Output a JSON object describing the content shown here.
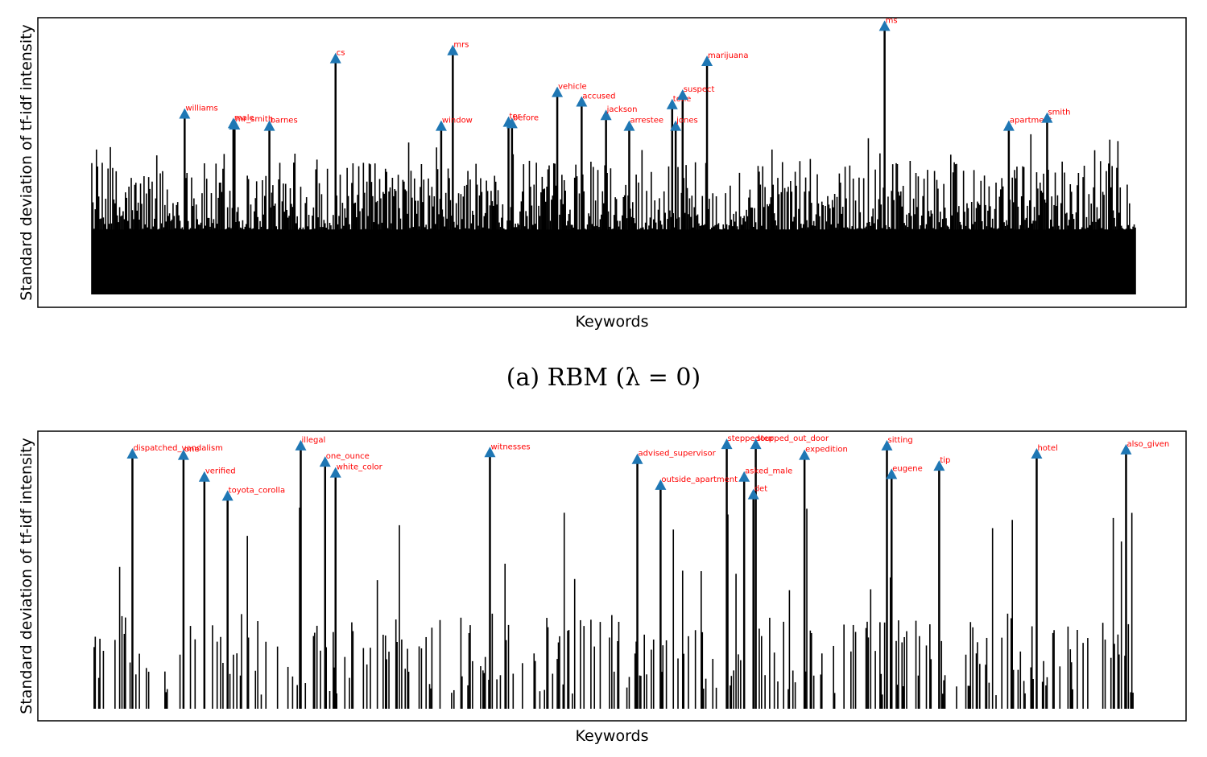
{
  "figure": {
    "caption": "(a) RBM (λ = 0)"
  },
  "chart_data": [
    {
      "type": "bar",
      "subtype": "stem-with-annotated-peaks",
      "xlabel": "Keywords",
      "ylabel": "Standard deviation of tf-idf intensity",
      "xticks": "none",
      "yticks": "none",
      "ylim": [
        0,
        1.0
      ],
      "n_keywords": 900,
      "colors": {
        "bars": "#000000",
        "markers": "#1f77b4",
        "labels": "#ff0000"
      },
      "baseline_level": 0.24,
      "background_peak_range": [
        0.35,
        0.6
      ],
      "annotations": [
        {
          "label": "williams",
          "x": 80,
          "y": 0.665
        },
        {
          "label": "male",
          "x": 122,
          "y": 0.63
        },
        {
          "label": "mr_smith",
          "x": 123,
          "y": 0.625
        },
        {
          "label": "barnes",
          "x": 153,
          "y": 0.62
        },
        {
          "label": "cs",
          "x": 210,
          "y": 0.87
        },
        {
          "label": "window",
          "x": 301,
          "y": 0.62
        },
        {
          "label": "mrs",
          "x": 311,
          "y": 0.9
        },
        {
          "label": "ter",
          "x": 359,
          "y": 0.635
        },
        {
          "label": "before",
          "x": 362,
          "y": 0.63
        },
        {
          "label": "vehicle",
          "x": 401,
          "y": 0.745
        },
        {
          "label": "accused",
          "x": 422,
          "y": 0.71
        },
        {
          "label": "jackson",
          "x": 443,
          "y": 0.66
        },
        {
          "label": "arrestee",
          "x": 463,
          "y": 0.62
        },
        {
          "label": "tone",
          "x": 500,
          "y": 0.7
        },
        {
          "label": "jones",
          "x": 503,
          "y": 0.62
        },
        {
          "label": "suspect",
          "x": 509,
          "y": 0.735
        },
        {
          "label": "marijuana",
          "x": 530,
          "y": 0.86
        },
        {
          "label": "ms",
          "x": 683,
          "y": 0.99
        },
        {
          "label": "apartment",
          "x": 790,
          "y": 0.62
        },
        {
          "label": "smith",
          "x": 823,
          "y": 0.65
        }
      ]
    },
    {
      "type": "bar",
      "subtype": "stem-with-annotated-peaks",
      "xlabel": "Keywords",
      "ylabel": "Standard deviation of tf-idf intensity",
      "xticks": "none",
      "yticks": "none",
      "ylim": [
        0,
        1.0
      ],
      "n_keywords": 900,
      "colors": {
        "bars": "#000000",
        "markers": "#1f77b4",
        "labels": "#ff0000"
      },
      "annotations": [
        {
          "label": "dispatched_vandalism",
          "x": 35,
          "y": 0.935
        },
        {
          "label": "one",
          "x": 79,
          "y": 0.93
        },
        {
          "label": "verified",
          "x": 97,
          "y": 0.85
        },
        {
          "label": "toyota_corolla",
          "x": 117,
          "y": 0.78
        },
        {
          "label": "illegal",
          "x": 180,
          "y": 0.965
        },
        {
          "label": "one_ounce",
          "x": 201,
          "y": 0.905
        },
        {
          "label": "white_color",
          "x": 210,
          "y": 0.865
        },
        {
          "label": "witnesses",
          "x": 343,
          "y": 0.94
        },
        {
          "label": "advised_supervisor",
          "x": 470,
          "y": 0.915
        },
        {
          "label": "outside_apartment",
          "x": 490,
          "y": 0.82
        },
        {
          "label": "steppedour",
          "x": 547,
          "y": 0.97
        },
        {
          "label": "asked_male",
          "x": 562,
          "y": 0.85
        },
        {
          "label": "det",
          "x": 570,
          "y": 0.785
        },
        {
          "label": "stepped_out_door",
          "x": 572,
          "y": 0.97
        },
        {
          "label": "expedition",
          "x": 614,
          "y": 0.93
        },
        {
          "label": "sitting",
          "x": 685,
          "y": 0.965
        },
        {
          "label": "eugene",
          "x": 689,
          "y": 0.86
        },
        {
          "label": "tip",
          "x": 730,
          "y": 0.89
        },
        {
          "label": "hotel",
          "x": 814,
          "y": 0.935
        },
        {
          "label": "also_given",
          "x": 891,
          "y": 0.95
        }
      ]
    }
  ]
}
